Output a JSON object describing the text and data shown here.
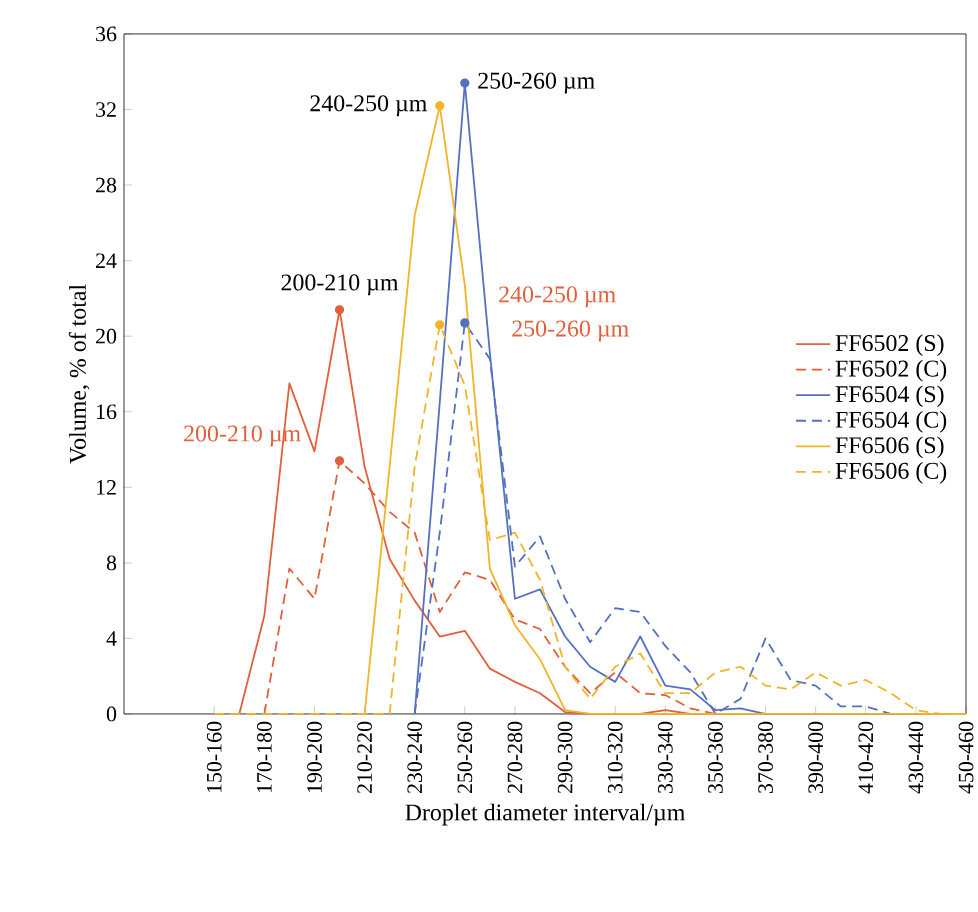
{
  "chart_data": {
    "type": "line",
    "xlabel": "Droplet diameter interval/µm",
    "ylabel": "Volume, % of total",
    "categories": [
      "150-160",
      null,
      "170-180",
      null,
      "190-200",
      null,
      "210-220",
      null,
      "230-240",
      null,
      "250-260",
      null,
      "270-280",
      null,
      "290-300",
      null,
      "310-320",
      null,
      "330-340",
      null,
      "350-360",
      null,
      "370-380",
      null,
      "390-400",
      null,
      "410-420",
      null,
      "430-440",
      null,
      "450-460"
    ],
    "ylim": [
      0,
      36
    ],
    "yticks": [
      0,
      4,
      8,
      12,
      16,
      20,
      24,
      28,
      32,
      36
    ],
    "legend": "right",
    "grid": false,
    "marker": "none",
    "series": [
      {
        "name": "FF6502 (S)",
        "color": "#e0603a",
        "line_style": "solid",
        "values": [
          null,
          0,
          5.2,
          17.5,
          13.9,
          21.4,
          13.1,
          8.2,
          6.0,
          4.1,
          4.4,
          2.4,
          1.7,
          1.1,
          0.1,
          0,
          0,
          0,
          0.2,
          0,
          0,
          0,
          null,
          null,
          null,
          null,
          null,
          null,
          null,
          null,
          null
        ]
      },
      {
        "name": "FF6502 (C)",
        "color": "#e0603a",
        "line_style": "dashed",
        "values": [
          null,
          null,
          0,
          7.7,
          6.1,
          13.4,
          12.2,
          10.7,
          9.6,
          5.4,
          7.5,
          7.1,
          5.0,
          4.5,
          2.5,
          1.1,
          2.2,
          1.1,
          1.0,
          0.3,
          0,
          0,
          null,
          null,
          null,
          null,
          null,
          null,
          null,
          null,
          null
        ]
      },
      {
        "name": "FF6504 (S)",
        "color": "#5470c0",
        "line_style": "solid",
        "values": [
          null,
          null,
          null,
          null,
          null,
          null,
          null,
          null,
          0,
          16.5,
          33.4,
          19.1,
          6.1,
          6.6,
          4.1,
          2.5,
          1.7,
          4.1,
          1.5,
          1.3,
          0.2,
          0.3,
          0,
          0,
          0,
          0,
          0,
          0,
          0,
          null,
          null
        ]
      },
      {
        "name": "FF6504 (C)",
        "color": "#5470c0",
        "line_style": "dashed",
        "values": [
          null,
          null,
          null,
          null,
          null,
          null,
          null,
          null,
          0,
          9.6,
          20.7,
          18.8,
          7.8,
          9.4,
          6.1,
          3.8,
          5.6,
          5.4,
          3.6,
          2.2,
          0,
          0.8,
          4.0,
          1.8,
          1.5,
          0.4,
          0.4,
          0,
          0,
          null,
          null
        ]
      },
      {
        "name": "FF6506 (S)",
        "color": "#f0b429",
        "line_style": "solid",
        "values": [
          null,
          null,
          null,
          null,
          null,
          null,
          0,
          13.1,
          26.4,
          32.2,
          22.7,
          7.7,
          4.7,
          2.9,
          0.2,
          0,
          0,
          0,
          0,
          0,
          0,
          0,
          0,
          0,
          0,
          0,
          0,
          0,
          0,
          0,
          0
        ]
      },
      {
        "name": "FF6506 (C)",
        "color": "#f0b429",
        "line_style": "dashed",
        "values": [
          0,
          0,
          0,
          0,
          0,
          0,
          0,
          0,
          13.1,
          20.6,
          17.4,
          9.2,
          9.6,
          7.1,
          2.5,
          0.8,
          2.5,
          3.2,
          1.1,
          1.1,
          2.2,
          2.5,
          1.5,
          1.3,
          2.2,
          1.5,
          1.8,
          1.1,
          0.2,
          0,
          0
        ]
      }
    ],
    "annotations": [
      "200-210 µm",
      "200-210 µm",
      "240-250 µm",
      "250-260 µm",
      "240-250 µm",
      "250-260 µm"
    ]
  }
}
